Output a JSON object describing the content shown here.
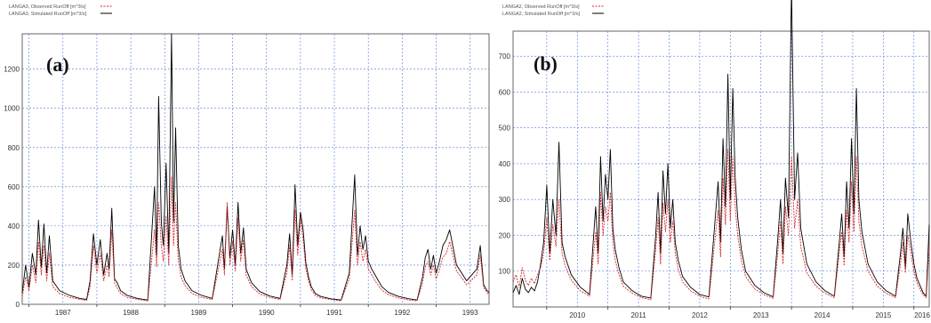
{
  "chart_data": [
    {
      "type": "line",
      "panel_label": "(a)",
      "legend": [
        {
          "label": "LANGA3, Observed RunOff [m^3/s]",
          "color": "#d62728",
          "style": "dashed"
        },
        {
          "label": "LANGA3, Simulated RunOff [m^3/s]",
          "color": "#000000",
          "style": "solid"
        }
      ],
      "x_ticks": [
        "1987",
        "1988",
        "1989",
        "1990",
        "1991",
        "1992",
        "1993"
      ],
      "xlim": [
        1986.9,
        1993.78
      ],
      "ylim": [
        0,
        1380
      ],
      "y_ticks": [
        0,
        200,
        400,
        600,
        800,
        1000,
        1200
      ],
      "grid": true,
      "series": [
        {
          "name": "LANGA3, Simulated RunOff [m^3/s]",
          "color": "#000000",
          "x": [
            1986.9,
            1986.95,
            1987.0,
            1987.05,
            1987.1,
            1987.14,
            1987.18,
            1987.22,
            1987.26,
            1987.3,
            1987.35,
            1987.45,
            1987.6,
            1987.75,
            1987.85,
            1987.9,
            1987.95,
            1988.0,
            1988.05,
            1988.1,
            1988.15,
            1988.18,
            1988.22,
            1988.26,
            1988.3,
            1988.35,
            1988.45,
            1988.6,
            1988.75,
            1988.85,
            1988.88,
            1988.91,
            1988.95,
            1988.98,
            1989.02,
            1989.06,
            1989.1,
            1989.13,
            1989.16,
            1989.2,
            1989.24,
            1989.3,
            1989.4,
            1989.55,
            1989.7,
            1989.85,
            1989.88,
            1989.92,
            1989.96,
            1990.0,
            1990.04,
            1990.08,
            1990.12,
            1990.16,
            1990.2,
            1990.28,
            1990.4,
            1990.55,
            1990.7,
            1990.8,
            1990.84,
            1990.88,
            1990.92,
            1990.96,
            1991.0,
            1991.04,
            1991.08,
            1991.12,
            1991.16,
            1991.22,
            1991.3,
            1991.45,
            1991.6,
            1991.72,
            1991.8,
            1991.84,
            1991.88,
            1991.92,
            1991.96,
            1992.0,
            1992.05,
            1992.1,
            1992.15,
            1992.2,
            1992.3,
            1992.45,
            1992.6,
            1992.72,
            1992.8,
            1992.84,
            1992.88,
            1992.92,
            1992.96,
            1993.0,
            1993.05,
            1993.1,
            1993.15,
            1993.2,
            1993.3,
            1993.45,
            1993.6,
            1993.65,
            1993.7,
            1993.75,
            1993.78
          ],
          "y": [
            60,
            200,
            90,
            260,
            150,
            430,
            190,
            410,
            160,
            350,
            120,
            70,
            45,
            30,
            25,
            120,
            360,
            200,
            330,
            150,
            260,
            180,
            490,
            130,
            110,
            70,
            45,
            30,
            22,
            600,
            250,
            1060,
            420,
            300,
            720,
            260,
            1380,
            420,
            900,
            300,
            180,
            120,
            70,
            45,
            30,
            350,
            180,
            500,
            240,
            380,
            200,
            520,
            260,
            390,
            180,
            110,
            65,
            42,
            30,
            200,
            360,
            150,
            610,
            300,
            470,
            380,
            210,
            140,
            90,
            55,
            40,
            28,
            22,
            160,
            660,
            250,
            400,
            280,
            350,
            220,
            180,
            150,
            120,
            90,
            60,
            40,
            28,
            22,
            140,
            240,
            280,
            180,
            250,
            160,
            220,
            300,
            330,
            380,
            200,
            120,
            180,
            300,
            100,
            70,
            60
          ]
        },
        {
          "name": "LANGA3, Observed RunOff [m^3/s]",
          "color": "#d62728",
          "x": [
            1986.9,
            1986.95,
            1987.0,
            1987.05,
            1987.1,
            1987.14,
            1987.18,
            1987.22,
            1987.26,
            1987.3,
            1987.35,
            1987.45,
            1987.6,
            1987.75,
            1987.85,
            1987.9,
            1987.95,
            1988.0,
            1988.05,
            1988.1,
            1988.15,
            1988.18,
            1988.22,
            1988.26,
            1988.3,
            1988.35,
            1988.45,
            1988.6,
            1988.75,
            1988.85,
            1988.88,
            1988.91,
            1988.95,
            1988.98,
            1989.02,
            1989.06,
            1989.1,
            1989.13,
            1989.16,
            1989.2,
            1989.24,
            1989.3,
            1989.4,
            1989.55,
            1989.7,
            1989.85,
            1989.88,
            1989.92,
            1989.96,
            1990.0,
            1990.04,
            1990.08,
            1990.12,
            1990.16,
            1990.2,
            1990.28,
            1990.4,
            1990.55,
            1990.7,
            1990.8,
            1990.84,
            1990.88,
            1990.92,
            1990.96,
            1991.0,
            1991.04,
            1991.08,
            1991.12,
            1991.16,
            1991.22,
            1991.3,
            1991.45,
            1991.6,
            1991.72,
            1991.8,
            1991.84,
            1991.88,
            1991.92,
            1991.96,
            1992.0,
            1992.05,
            1992.1,
            1992.15,
            1992.2,
            1992.3,
            1992.45,
            1992.6,
            1992.72,
            1992.8,
            1992.84,
            1992.88,
            1992.92,
            1992.96,
            1993.0,
            1993.05,
            1993.1,
            1993.15,
            1993.2,
            1993.3,
            1993.45,
            1993.6,
            1993.65,
            1993.7,
            1993.75,
            1993.78
          ],
          "y": [
            40,
            140,
            70,
            200,
            110,
            320,
            150,
            300,
            120,
            260,
            90,
            55,
            35,
            25,
            20,
            90,
            300,
            160,
            260,
            120,
            200,
            140,
            380,
            110,
            85,
            55,
            35,
            25,
            18,
            380,
            190,
            520,
            300,
            220,
            450,
            200,
            650,
            300,
            520,
            220,
            140,
            95,
            55,
            35,
            25,
            280,
            150,
            520,
            200,
            320,
            170,
            440,
            220,
            330,
            150,
            90,
            52,
            35,
            25,
            160,
            300,
            120,
            480,
            250,
            440,
            330,
            180,
            120,
            75,
            45,
            33,
            24,
            18,
            130,
            480,
            200,
            320,
            220,
            280,
            180,
            150,
            120,
            95,
            72,
            48,
            32,
            22,
            18,
            110,
            190,
            220,
            150,
            200,
            130,
            180,
            240,
            260,
            320,
            170,
            100,
            150,
            250,
            85,
            60,
            50
          ]
        }
      ]
    },
    {
      "type": "line",
      "panel_label": "(b)",
      "legend": [
        {
          "label": "LANGA2, Observed RunOff [m^3/s]",
          "color": "#d62728",
          "style": "dashed"
        },
        {
          "label": "LANGA2, Simulated RunOff [m^3/s]",
          "color": "#000000",
          "style": "solid"
        }
      ],
      "x_ticks": [
        "2010",
        "2011",
        "2012",
        "2013",
        "2014",
        "2015",
        "2016"
      ],
      "xlim": [
        2009.45,
        2016.25
      ],
      "ylim": [
        0,
        770
      ],
      "y_ticks": [
        100,
        200,
        300,
        400,
        500,
        600,
        700
      ],
      "grid": true,
      "series": [
        {
          "name": "LANGA2, Simulated RunOff [m^3/s]",
          "color": "#000000",
          "x": [
            2009.45,
            2009.5,
            2009.55,
            2009.6,
            2009.65,
            2009.7,
            2009.75,
            2009.8,
            2009.85,
            2009.9,
            2009.95,
            2010.0,
            2010.05,
            2010.1,
            2010.15,
            2010.2,
            2010.25,
            2010.3,
            2010.4,
            2010.55,
            2010.7,
            2010.8,
            2010.84,
            2010.88,
            2010.92,
            2010.96,
            2011.0,
            2011.04,
            2011.08,
            2011.12,
            2011.18,
            2011.25,
            2011.4,
            2011.55,
            2011.7,
            2011.78,
            2011.82,
            2011.86,
            2011.9,
            2011.94,
            2011.98,
            2012.02,
            2012.06,
            2012.1,
            2012.15,
            2012.22,
            2012.35,
            2012.5,
            2012.65,
            2012.75,
            2012.8,
            2012.84,
            2012.88,
            2012.92,
            2012.96,
            2013.0,
            2013.04,
            2013.08,
            2013.12,
            2013.18,
            2013.25,
            2013.4,
            2013.55,
            2013.7,
            2013.78,
            2013.82,
            2013.86,
            2013.9,
            2013.95,
            2014.0,
            2014.05,
            2014.1,
            2014.15,
            2014.25,
            2014.4,
            2014.55,
            2014.7,
            2014.78,
            2014.82,
            2014.86,
            2014.9,
            2014.94,
            2014.98,
            2015.02,
            2015.06,
            2015.1,
            2015.15,
            2015.25,
            2015.4,
            2015.55,
            2015.7,
            2015.78,
            2015.82,
            2015.86,
            2015.9,
            2015.95,
            2016.0,
            2016.05,
            2016.1,
            2016.15,
            2016.2,
            2016.25
          ],
          "y": [
            40,
            60,
            35,
            80,
            50,
            40,
            55,
            45,
            70,
            120,
            180,
            340,
            150,
            300,
            200,
            460,
            180,
            140,
            90,
            55,
            35,
            280,
            150,
            420,
            240,
            370,
            300,
            440,
            220,
            160,
            110,
            70,
            45,
            30,
            25,
            200,
            320,
            150,
            380,
            260,
            400,
            220,
            300,
            180,
            130,
            85,
            55,
            35,
            28,
            240,
            350,
            180,
            470,
            280,
            650,
            300,
            610,
            360,
            250,
            160,
            100,
            60,
            40,
            28,
            200,
            300,
            150,
            360,
            250,
            900,
            300,
            430,
            220,
            120,
            70,
            45,
            30,
            180,
            260,
            140,
            350,
            220,
            470,
            260,
            610,
            300,
            210,
            120,
            70,
            45,
            30,
            150,
            220,
            110,
            260,
            180,
            120,
            80,
            60,
            40,
            30,
            230
          ]
        },
        {
          "name": "LANGA2, Observed RunOff [m^3/s]",
          "color": "#d62728",
          "x": [
            2009.45,
            2009.5,
            2009.55,
            2009.6,
            2009.65,
            2009.7,
            2009.75,
            2009.8,
            2009.85,
            2009.9,
            2009.95,
            2010.0,
            2010.05,
            2010.1,
            2010.15,
            2010.2,
            2010.25,
            2010.3,
            2010.4,
            2010.55,
            2010.7,
            2010.8,
            2010.84,
            2010.88,
            2010.92,
            2010.96,
            2011.0,
            2011.04,
            2011.08,
            2011.12,
            2011.18,
            2011.25,
            2011.4,
            2011.55,
            2011.7,
            2011.78,
            2011.82,
            2011.86,
            2011.9,
            2011.94,
            2011.98,
            2012.02,
            2012.06,
            2012.1,
            2012.15,
            2012.22,
            2012.35,
            2012.5,
            2012.65,
            2012.75,
            2012.8,
            2012.84,
            2012.88,
            2012.92,
            2012.96,
            2013.0,
            2013.04,
            2013.08,
            2013.12,
            2013.18,
            2013.25,
            2013.4,
            2013.55,
            2013.7,
            2013.78,
            2013.82,
            2013.86,
            2013.9,
            2013.95,
            2014.0,
            2014.05,
            2014.1,
            2014.15,
            2014.25,
            2014.4,
            2014.55,
            2014.7,
            2014.78,
            2014.82,
            2014.86,
            2014.9,
            2014.94,
            2014.98,
            2015.02,
            2015.06,
            2015.1,
            2015.15,
            2015.25,
            2015.4,
            2015.55,
            2015.7,
            2015.78,
            2015.82,
            2015.86,
            2015.9,
            2015.95,
            2016.0,
            2016.05,
            2016.1,
            2016.15,
            2016.2,
            2016.25
          ],
          "y": [
            70,
            90,
            55,
            110,
            75,
            60,
            80,
            65,
            90,
            110,
            150,
            250,
            130,
            230,
            170,
            300,
            150,
            115,
            75,
            45,
            30,
            210,
            120,
            320,
            200,
            280,
            240,
            320,
            180,
            130,
            90,
            58,
            38,
            26,
            20,
            160,
            250,
            120,
            290,
            210,
            300,
            180,
            240,
            150,
            105,
            70,
            45,
            30,
            22,
            190,
            270,
            140,
            360,
            230,
            440,
            240,
            420,
            280,
            200,
            130,
            85,
            50,
            34,
            24,
            160,
            240,
            120,
            280,
            200,
            420,
            220,
            300,
            170,
            95,
            58,
            38,
            26,
            150,
            210,
            115,
            270,
            180,
            350,
            210,
            420,
            240,
            170,
            100,
            58,
            38,
            26,
            120,
            180,
            95,
            200,
            150,
            100,
            68,
            50,
            34,
            26,
            170
          ]
        }
      ]
    }
  ]
}
